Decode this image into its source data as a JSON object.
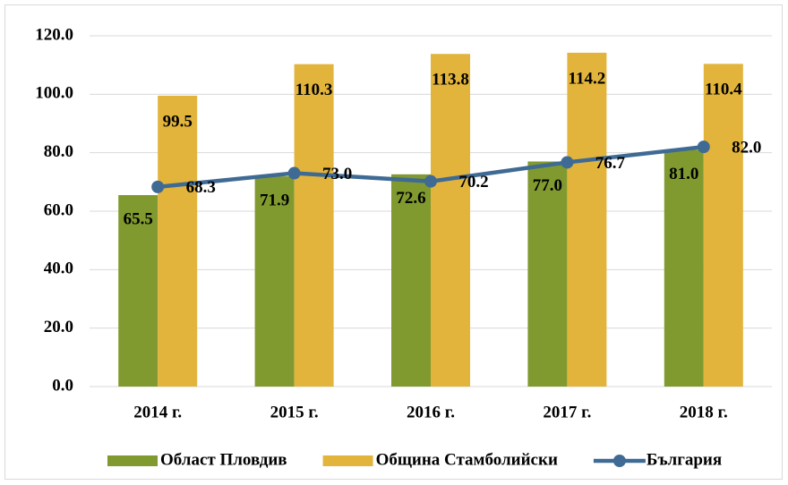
{
  "chart_data": {
    "type": "bar",
    "categories": [
      "2014 г.",
      "2015 г.",
      "2016 г.",
      "2017 г.",
      "2018 г."
    ],
    "series": [
      {
        "name": "Област Пловдив",
        "color": "#809a2f",
        "values": [
          65.5,
          71.9,
          72.6,
          77.0,
          81.0
        ],
        "value_labels": [
          "65.5",
          "71.9",
          "72.6",
          "77.0",
          "81.0"
        ]
      },
      {
        "name": "Община Стамболийски",
        "color": "#e2b43c",
        "values": [
          99.5,
          110.3,
          113.8,
          114.2,
          110.4
        ]
      },
      {
        "name": "България",
        "color": "#3f6a94",
        "type": "line",
        "values": [
          68.3,
          73.0,
          70.2,
          76.7,
          82.0
        ],
        "value_labels": [
          "68.3",
          "73.0",
          "70.2",
          "76.7",
          "82.0"
        ]
      }
    ],
    "ylim": [
      0,
      120
    ],
    "yticks": [
      {
        "value": 0,
        "label": "0.0"
      },
      {
        "value": 20,
        "label": "20.0"
      },
      {
        "value": 40,
        "label": "40.0"
      },
      {
        "value": 60,
        "label": "60.0"
      },
      {
        "value": 80,
        "label": "80.0"
      },
      {
        "value": 100,
        "label": "100.0"
      },
      {
        "value": 120,
        "label": "120.0"
      }
    ],
    "grid": true,
    "legend": "bottom"
  }
}
